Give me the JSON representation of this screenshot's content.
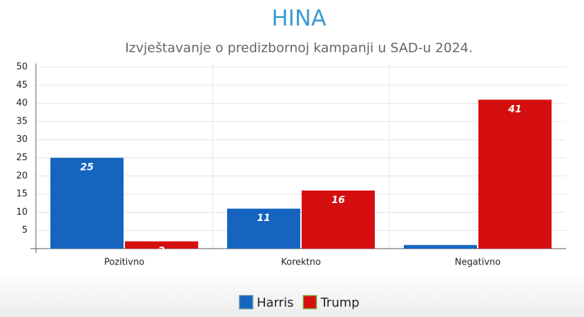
{
  "chart_data": {
    "type": "bar",
    "title": "HINA",
    "subtitle": "Izvještavanje o predizbornoj kampanji u SAD-u 2024.",
    "categories": [
      "Pozitivno",
      "Korektno",
      "Negativno"
    ],
    "series": [
      {
        "name": "Harris",
        "color": "#1565c0",
        "values": [
          25,
          11,
          1
        ]
      },
      {
        "name": "Trump",
        "color": "#d50f0f",
        "values": [
          2,
          16,
          41
        ]
      }
    ],
    "ylim": [
      0,
      50
    ],
    "yticks": [
      5,
      10,
      15,
      20,
      25,
      30,
      35,
      40,
      45,
      50
    ],
    "grid": true
  }
}
